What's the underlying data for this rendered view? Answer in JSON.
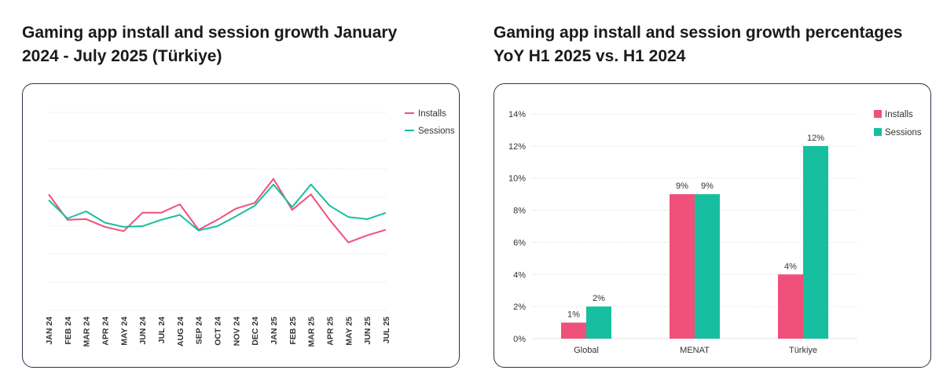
{
  "titles": {
    "left": "Gaming app install and session growth January 2024 - July 2025 (Türkiye)",
    "right": "Gaming app install and session growth percentages YoY H1 2025 vs. H1 2024"
  },
  "colors": {
    "installs": "#f0507a",
    "sessions": "#17bfa0",
    "grid": "#d9d9d9",
    "text": "#333333"
  },
  "chart_data": [
    {
      "type": "line",
      "title": "Gaming app install and session growth January 2024 - July 2025 (Türkiye)",
      "categories": [
        "JAN 24",
        "FEB 24",
        "MAR 24",
        "APR 24",
        "MAY 24",
        "JUN 24",
        "JUL 24",
        "AUG 24",
        "SEP 24",
        "OCT 24",
        "NOV 24",
        "DEC 24",
        "JAN 25",
        "FEB 25",
        "MAR 25",
        "APR 25",
        "MAY 25",
        "JUN 25",
        "JUL 25"
      ],
      "series": [
        {
          "name": "Installs",
          "values": [
            82,
            64,
            64.5,
            59,
            56,
            69,
            69,
            75,
            57,
            64,
            72,
            76,
            93,
            71,
            82,
            64,
            48,
            53,
            57
          ]
        },
        {
          "name": "Sessions",
          "values": [
            78,
            65,
            70,
            62,
            59,
            59.5,
            64,
            67.5,
            56.5,
            59.5,
            66.5,
            74,
            89,
            73,
            89,
            74,
            66,
            64.5,
            69
          ]
        }
      ],
      "ylim": [
        0,
        140
      ],
      "yticks_shown": false,
      "legend": "top-right"
    },
    {
      "type": "bar",
      "title": "Gaming app install and session growth percentages YoY H1 2025 vs. H1 2024",
      "categories": [
        "Global",
        "MENAT",
        "Türkiye"
      ],
      "series": [
        {
          "name": "Installs",
          "values": [
            1,
            9,
            4
          ],
          "labels": [
            "1%",
            "9%",
            "4%"
          ]
        },
        {
          "name": "Sessions",
          "values": [
            2,
            9,
            12
          ],
          "labels": [
            "2%",
            "9%",
            "12%"
          ]
        }
      ],
      "yticks": [
        "0%",
        "2%",
        "4%",
        "6%",
        "8%",
        "10%",
        "12%",
        "14%"
      ],
      "ylim": [
        0,
        14
      ],
      "legend": "top-right"
    }
  ]
}
